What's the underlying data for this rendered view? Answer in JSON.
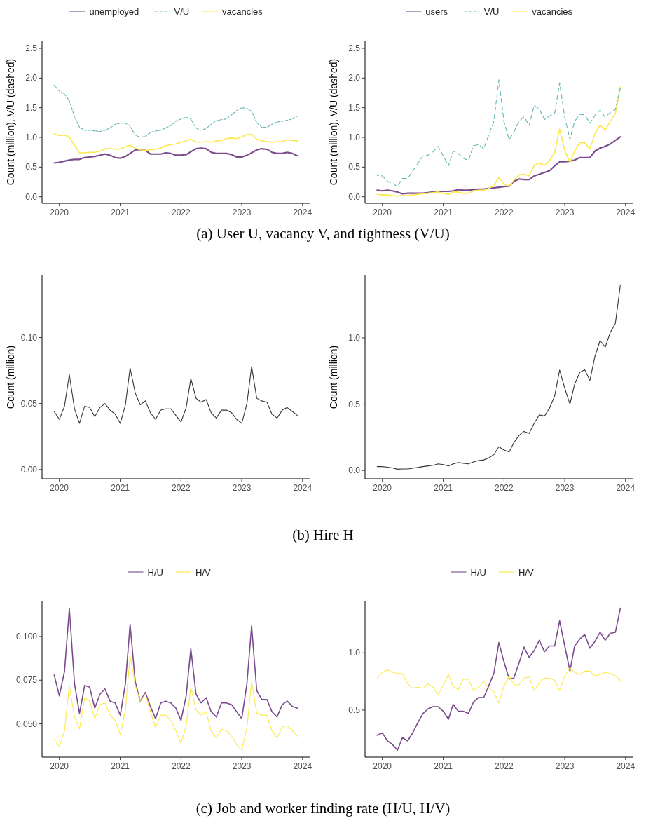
{
  "chart_data": [
    {
      "type": "line",
      "ylabel": "Count (million), V/U (dashed)",
      "legend": "top",
      "annotations": [
        "(a) User U, vacancy V, and tightness (V/U)"
      ],
      "x": [
        "2019-12",
        "2020-01",
        "2020-02",
        "2020-03",
        "2020-04",
        "2020-05",
        "2020-06",
        "2020-07",
        "2020-08",
        "2020-09",
        "2020-10",
        "2020-11",
        "2020-12",
        "2021-01",
        "2021-02",
        "2021-03",
        "2021-04",
        "2021-05",
        "2021-06",
        "2021-07",
        "2021-08",
        "2021-09",
        "2021-10",
        "2021-11",
        "2021-12",
        "2022-01",
        "2022-02",
        "2022-03",
        "2022-04",
        "2022-05",
        "2022-06",
        "2022-07",
        "2022-08",
        "2022-09",
        "2022-10",
        "2022-11",
        "2022-12",
        "2023-01",
        "2023-02",
        "2023-03",
        "2023-04",
        "2023-05",
        "2023-06",
        "2023-07",
        "2023-08",
        "2023-09",
        "2023-10",
        "2023-11",
        "2023-12"
      ],
      "xlim": [
        "2019-09-19",
        "2024-02-13"
      ],
      "xticks": [
        "2020",
        "2021",
        "2022",
        "2023",
        "2024"
      ],
      "ylim": [
        -0.11,
        2.63
      ],
      "yticks": [
        {
          "value": 0,
          "label": "0.0"
        },
        {
          "value": 0.5,
          "label": "0.5"
        },
        {
          "value": 1,
          "label": "1.0"
        },
        {
          "value": 1.5,
          "label": "1.5"
        },
        {
          "value": 2,
          "label": "2.0"
        },
        {
          "value": 2.5,
          "label": "2.5"
        }
      ],
      "series": [
        {
          "name": "unemployed",
          "color": "#7b4a8c",
          "line_style": "solid",
          "values": [
            0.57,
            0.58,
            0.6,
            0.62,
            0.63,
            0.63,
            0.66,
            0.67,
            0.68,
            0.7,
            0.72,
            0.7,
            0.66,
            0.65,
            0.68,
            0.73,
            0.79,
            0.79,
            0.78,
            0.72,
            0.72,
            0.72,
            0.74,
            0.73,
            0.7,
            0.7,
            0.71,
            0.76,
            0.81,
            0.82,
            0.81,
            0.75,
            0.73,
            0.73,
            0.73,
            0.71,
            0.67,
            0.67,
            0.7,
            0.74,
            0.79,
            0.81,
            0.8,
            0.75,
            0.73,
            0.73,
            0.75,
            0.73,
            0.69
          ]
        },
        {
          "name": "V/U",
          "color": "#5fb5b1",
          "line_style": "dashed",
          "values": [
            1.88,
            1.78,
            1.73,
            1.62,
            1.35,
            1.17,
            1.12,
            1.12,
            1.11,
            1.1,
            1.12,
            1.16,
            1.22,
            1.24,
            1.24,
            1.19,
            1.04,
            1.0,
            1.02,
            1.08,
            1.11,
            1.12,
            1.16,
            1.2,
            1.27,
            1.31,
            1.34,
            1.31,
            1.16,
            1.12,
            1.15,
            1.22,
            1.28,
            1.3,
            1.31,
            1.38,
            1.45,
            1.5,
            1.49,
            1.44,
            1.25,
            1.17,
            1.17,
            1.22,
            1.26,
            1.27,
            1.29,
            1.31,
            1.36
          ]
        },
        {
          "name": "vacancies",
          "color": "#fde84a",
          "line_style": "solid",
          "values": [
            1.06,
            1.03,
            1.04,
            1.01,
            0.87,
            0.74,
            0.74,
            0.75,
            0.75,
            0.77,
            0.81,
            0.81,
            0.8,
            0.81,
            0.84,
            0.87,
            0.82,
            0.79,
            0.78,
            0.79,
            0.8,
            0.82,
            0.86,
            0.88,
            0.89,
            0.92,
            0.94,
            0.97,
            0.92,
            0.92,
            0.93,
            0.92,
            0.94,
            0.95,
            0.98,
            0.99,
            0.98,
            1.01,
            1.05,
            1.05,
            0.97,
            0.94,
            0.93,
            0.92,
            0.93,
            0.93,
            0.96,
            0.95,
            0.94
          ]
        }
      ]
    },
    {
      "type": "line",
      "ylabel": "Count (million), V/U (dashed)",
      "legend": "top",
      "x": [
        "2019-12",
        "2020-01",
        "2020-02",
        "2020-03",
        "2020-04",
        "2020-05",
        "2020-06",
        "2020-07",
        "2020-08",
        "2020-09",
        "2020-10",
        "2020-11",
        "2020-12",
        "2021-01",
        "2021-02",
        "2021-03",
        "2021-04",
        "2021-05",
        "2021-06",
        "2021-07",
        "2021-08",
        "2021-09",
        "2021-10",
        "2021-11",
        "2021-12",
        "2022-01",
        "2022-02",
        "2022-03",
        "2022-04",
        "2022-05",
        "2022-06",
        "2022-07",
        "2022-08",
        "2022-09",
        "2022-10",
        "2022-11",
        "2022-12",
        "2023-01",
        "2023-02",
        "2023-03",
        "2023-04",
        "2023-05",
        "2023-06",
        "2023-07",
        "2023-08",
        "2023-09",
        "2023-10",
        "2023-11",
        "2023-12"
      ],
      "xlim": [
        "2019-09-19",
        "2024-02-13"
      ],
      "xticks": [
        "2020",
        "2021",
        "2022",
        "2023",
        "2024"
      ],
      "ylim": [
        -0.11,
        2.63
      ],
      "yticks": [
        {
          "value": 0,
          "label": "0.0"
        },
        {
          "value": 0.5,
          "label": "0.5"
        },
        {
          "value": 1,
          "label": "1.0"
        },
        {
          "value": 1.5,
          "label": "1.5"
        },
        {
          "value": 2,
          "label": "2.0"
        },
        {
          "value": 2.5,
          "label": "2.5"
        }
      ],
      "series": [
        {
          "name": "users",
          "color": "#7b4a8c",
          "line_style": "solid",
          "values": [
            0.11,
            0.1,
            0.11,
            0.1,
            0.08,
            0.05,
            0.06,
            0.06,
            0.06,
            0.06,
            0.07,
            0.08,
            0.09,
            0.09,
            0.09,
            0.1,
            0.12,
            0.11,
            0.11,
            0.12,
            0.13,
            0.13,
            0.14,
            0.15,
            0.16,
            0.17,
            0.18,
            0.26,
            0.3,
            0.29,
            0.29,
            0.35,
            0.38,
            0.41,
            0.44,
            0.52,
            0.59,
            0.59,
            0.6,
            0.62,
            0.66,
            0.66,
            0.66,
            0.77,
            0.82,
            0.85,
            0.89,
            0.95,
            1.01
          ]
        },
        {
          "name": "V/U",
          "color": "#5fb5b1",
          "line_style": "dashed",
          "values": [
            0.36,
            0.35,
            0.26,
            0.23,
            0.17,
            0.31,
            0.31,
            0.43,
            0.56,
            0.69,
            0.7,
            0.76,
            0.85,
            0.69,
            0.52,
            0.77,
            0.73,
            0.65,
            0.61,
            0.86,
            0.88,
            0.81,
            1.04,
            1.27,
            1.97,
            1.26,
            0.96,
            1.09,
            1.27,
            1.35,
            1.2,
            1.54,
            1.48,
            1.3,
            1.36,
            1.4,
            1.92,
            1.33,
            0.97,
            1.27,
            1.39,
            1.38,
            1.24,
            1.37,
            1.46,
            1.34,
            1.42,
            1.47,
            1.83
          ]
        },
        {
          "name": "vacancies",
          "color": "#fde84a",
          "line_style": "solid",
          "values": [
            0.04,
            0.03,
            0.03,
            0.02,
            0.01,
            0.02,
            0.02,
            0.03,
            0.04,
            0.05,
            0.06,
            0.07,
            0.08,
            0.06,
            0.04,
            0.08,
            0.08,
            0.06,
            0.06,
            0.1,
            0.11,
            0.11,
            0.14,
            0.19,
            0.33,
            0.21,
            0.18,
            0.28,
            0.37,
            0.38,
            0.35,
            0.53,
            0.57,
            0.53,
            0.61,
            0.74,
            1.14,
            0.78,
            0.58,
            0.77,
            0.91,
            0.91,
            0.81,
            1.06,
            1.21,
            1.12,
            1.27,
            1.4,
            1.85
          ]
        }
      ]
    },
    {
      "type": "line",
      "ylabel": "Count (million)",
      "annotations": [
        "(b) Hire H"
      ],
      "x": [
        "2019-12",
        "2020-01",
        "2020-02",
        "2020-03",
        "2020-04",
        "2020-05",
        "2020-06",
        "2020-07",
        "2020-08",
        "2020-09",
        "2020-10",
        "2020-11",
        "2020-12",
        "2021-01",
        "2021-02",
        "2021-03",
        "2021-04",
        "2021-05",
        "2021-06",
        "2021-07",
        "2021-08",
        "2021-09",
        "2021-10",
        "2021-11",
        "2021-12",
        "2022-01",
        "2022-02",
        "2022-03",
        "2022-04",
        "2022-05",
        "2022-06",
        "2022-07",
        "2022-08",
        "2022-09",
        "2022-10",
        "2022-11",
        "2022-12",
        "2023-01",
        "2023-02",
        "2023-03",
        "2023-04",
        "2023-05",
        "2023-06",
        "2023-07",
        "2023-08",
        "2023-09",
        "2023-10",
        "2023-11",
        "2023-12"
      ],
      "xlim": [
        "2019-09-19",
        "2024-02-13"
      ],
      "xticks": [
        "2020",
        "2021",
        "2022",
        "2023",
        "2024"
      ],
      "ylim": [
        -0.007,
        0.147
      ],
      "yticks": [
        {
          "value": 0,
          "label": "0.00"
        },
        {
          "value": 0.05,
          "label": "0.05"
        },
        {
          "value": 0.1,
          "label": "0.10"
        }
      ],
      "series": [
        {
          "color": "#333333",
          "line_style": "solid",
          "values": [
            0.044,
            0.038,
            0.048,
            0.072,
            0.046,
            0.035,
            0.048,
            0.047,
            0.04,
            0.047,
            0.05,
            0.045,
            0.042,
            0.035,
            0.049,
            0.077,
            0.058,
            0.049,
            0.052,
            0.043,
            0.038,
            0.045,
            0.046,
            0.046,
            0.041,
            0.036,
            0.047,
            0.069,
            0.054,
            0.051,
            0.053,
            0.043,
            0.039,
            0.045,
            0.045,
            0.043,
            0.038,
            0.035,
            0.05,
            0.078,
            0.054,
            0.052,
            0.051,
            0.042,
            0.039,
            0.045,
            0.047,
            0.044,
            0.041
          ]
        }
      ]
    },
    {
      "type": "line",
      "ylabel": "Count (million)",
      "x": [
        "2019-12",
        "2020-01",
        "2020-02",
        "2020-03",
        "2020-04",
        "2020-05",
        "2020-06",
        "2020-07",
        "2020-08",
        "2020-09",
        "2020-10",
        "2020-11",
        "2020-12",
        "2021-01",
        "2021-02",
        "2021-03",
        "2021-04",
        "2021-05",
        "2021-06",
        "2021-07",
        "2021-08",
        "2021-09",
        "2021-10",
        "2021-11",
        "2021-12",
        "2022-01",
        "2022-02",
        "2022-03",
        "2022-04",
        "2022-05",
        "2022-06",
        "2022-07",
        "2022-08",
        "2022-09",
        "2022-10",
        "2022-11",
        "2022-12",
        "2023-01",
        "2023-02",
        "2023-03",
        "2023-04",
        "2023-05",
        "2023-06",
        "2023-07",
        "2023-08",
        "2023-09",
        "2023-10",
        "2023-11",
        "2023-12"
      ],
      "xlim": [
        "2019-09-19",
        "2024-02-13"
      ],
      "xticks": [
        "2020",
        "2021",
        "2022",
        "2023",
        "2024"
      ],
      "ylim": [
        -0.062,
        1.47
      ],
      "yticks": [
        {
          "value": 0,
          "label": "0.0"
        },
        {
          "value": 0.5,
          "label": "0.5"
        },
        {
          "value": 1,
          "label": "1.0"
        }
      ],
      "series": [
        {
          "color": "#333333",
          "line_style": "solid",
          "values": [
            0.03,
            0.03,
            0.025,
            0.02,
            0.01,
            0.012,
            0.012,
            0.017,
            0.023,
            0.03,
            0.035,
            0.04,
            0.05,
            0.045,
            0.035,
            0.05,
            0.06,
            0.055,
            0.05,
            0.065,
            0.075,
            0.08,
            0.095,
            0.12,
            0.18,
            0.155,
            0.14,
            0.21,
            0.265,
            0.295,
            0.28,
            0.355,
            0.42,
            0.41,
            0.47,
            0.56,
            0.757,
            0.62,
            0.5,
            0.65,
            0.74,
            0.76,
            0.68,
            0.86,
            0.98,
            0.93,
            1.04,
            1.11,
            1.4
          ]
        }
      ]
    },
    {
      "type": "line",
      "legend": "top",
      "annotations": [
        "(c) Job and worker finding rate (H/U, H/V)"
      ],
      "x": [
        "2019-12",
        "2020-01",
        "2020-02",
        "2020-03",
        "2020-04",
        "2020-05",
        "2020-06",
        "2020-07",
        "2020-08",
        "2020-09",
        "2020-10",
        "2020-11",
        "2020-12",
        "2021-01",
        "2021-02",
        "2021-03",
        "2021-04",
        "2021-05",
        "2021-06",
        "2021-07",
        "2021-08",
        "2021-09",
        "2021-10",
        "2021-11",
        "2021-12",
        "2022-01",
        "2022-02",
        "2022-03",
        "2022-04",
        "2022-05",
        "2022-06",
        "2022-07",
        "2022-08",
        "2022-09",
        "2022-10",
        "2022-11",
        "2022-12",
        "2023-01",
        "2023-02",
        "2023-03",
        "2023-04",
        "2023-05",
        "2023-06",
        "2023-07",
        "2023-08",
        "2023-09",
        "2023-10",
        "2023-11",
        "2023-12"
      ],
      "xlim": [
        "2019-09-19",
        "2024-02-13"
      ],
      "xticks": [
        "2020",
        "2021",
        "2022",
        "2023",
        "2024"
      ],
      "ylim": [
        0.031,
        0.12
      ],
      "yticks": [
        {
          "value": 0.05,
          "label": "0.050"
        },
        {
          "value": 0.075,
          "label": "0.075"
        },
        {
          "value": 0.1,
          "label": "0.100"
        }
      ],
      "series": [
        {
          "name": "H/U",
          "color": "#7b4a8c",
          "line_style": "solid",
          "values": [
            0.078,
            0.066,
            0.08,
            0.116,
            0.073,
            0.056,
            0.072,
            0.071,
            0.059,
            0.067,
            0.07,
            0.063,
            0.062,
            0.055,
            0.073,
            0.107,
            0.074,
            0.063,
            0.068,
            0.06,
            0.053,
            0.062,
            0.063,
            0.062,
            0.059,
            0.052,
            0.066,
            0.093,
            0.067,
            0.062,
            0.065,
            0.057,
            0.054,
            0.062,
            0.062,
            0.061,
            0.057,
            0.053,
            0.073,
            0.106,
            0.069,
            0.064,
            0.064,
            0.057,
            0.054,
            0.061,
            0.063,
            0.06,
            0.059
          ]
        },
        {
          "name": "H/V",
          "color": "#fde84a",
          "line_style": "solid",
          "values": [
            0.041,
            0.037,
            0.046,
            0.072,
            0.054,
            0.047,
            0.065,
            0.063,
            0.053,
            0.061,
            0.062,
            0.055,
            0.052,
            0.044,
            0.058,
            0.089,
            0.072,
            0.063,
            0.067,
            0.057,
            0.048,
            0.055,
            0.055,
            0.052,
            0.046,
            0.039,
            0.049,
            0.071,
            0.058,
            0.055,
            0.057,
            0.046,
            0.042,
            0.047,
            0.046,
            0.043,
            0.038,
            0.035,
            0.048,
            0.074,
            0.056,
            0.055,
            0.055,
            0.046,
            0.042,
            0.048,
            0.049,
            0.046,
            0.043
          ]
        }
      ]
    },
    {
      "type": "line",
      "legend": "top",
      "x": [
        "2019-12",
        "2020-01",
        "2020-02",
        "2020-03",
        "2020-04",
        "2020-05",
        "2020-06",
        "2020-07",
        "2020-08",
        "2020-09",
        "2020-10",
        "2020-11",
        "2020-12",
        "2021-01",
        "2021-02",
        "2021-03",
        "2021-04",
        "2021-05",
        "2021-06",
        "2021-07",
        "2021-08",
        "2021-09",
        "2021-10",
        "2021-11",
        "2021-12",
        "2022-01",
        "2022-02",
        "2022-03",
        "2022-04",
        "2022-05",
        "2022-06",
        "2022-07",
        "2022-08",
        "2022-09",
        "2022-10",
        "2022-11",
        "2022-12",
        "2023-01",
        "2023-02",
        "2023-03",
        "2023-04",
        "2023-05",
        "2023-06",
        "2023-07",
        "2023-08",
        "2023-09",
        "2023-10",
        "2023-11",
        "2023-12"
      ],
      "xlim": [
        "2019-09-19",
        "2024-02-13"
      ],
      "xticks": [
        "2020",
        "2021",
        "2022",
        "2023",
        "2024"
      ],
      "ylim": [
        0.089,
        1.449
      ],
      "yticks": [
        {
          "value": 0.5,
          "label": "0.5"
        },
        {
          "value": 1,
          "label": "1.0"
        }
      ],
      "series": [
        {
          "name": "H/U",
          "color": "#7b4a8c",
          "line_style": "solid",
          "values": [
            0.28,
            0.3,
            0.23,
            0.2,
            0.15,
            0.26,
            0.23,
            0.3,
            0.39,
            0.47,
            0.51,
            0.53,
            0.53,
            0.49,
            0.42,
            0.55,
            0.49,
            0.49,
            0.47,
            0.57,
            0.61,
            0.61,
            0.71,
            0.82,
            1.09,
            0.92,
            0.77,
            0.78,
            0.91,
            1.05,
            0.96,
            1.02,
            1.11,
            1.01,
            1.06,
            1.06,
            1.28,
            1.06,
            0.84,
            1.06,
            1.12,
            1.16,
            1.04,
            1.1,
            1.18,
            1.11,
            1.17,
            1.18,
            1.39
          ]
        },
        {
          "name": "H/V",
          "color": "#fde84a",
          "line_style": "solid",
          "values": [
            0.78,
            0.83,
            0.85,
            0.83,
            0.82,
            0.82,
            0.73,
            0.69,
            0.7,
            0.69,
            0.73,
            0.7,
            0.63,
            0.72,
            0.81,
            0.71,
            0.68,
            0.77,
            0.77,
            0.67,
            0.7,
            0.75,
            0.69,
            0.66,
            0.56,
            0.71,
            0.8,
            0.72,
            0.72,
            0.78,
            0.79,
            0.67,
            0.74,
            0.78,
            0.78,
            0.76,
            0.67,
            0.8,
            0.87,
            0.83,
            0.81,
            0.84,
            0.84,
            0.8,
            0.81,
            0.83,
            0.82,
            0.8,
            0.76
          ]
        }
      ]
    }
  ]
}
